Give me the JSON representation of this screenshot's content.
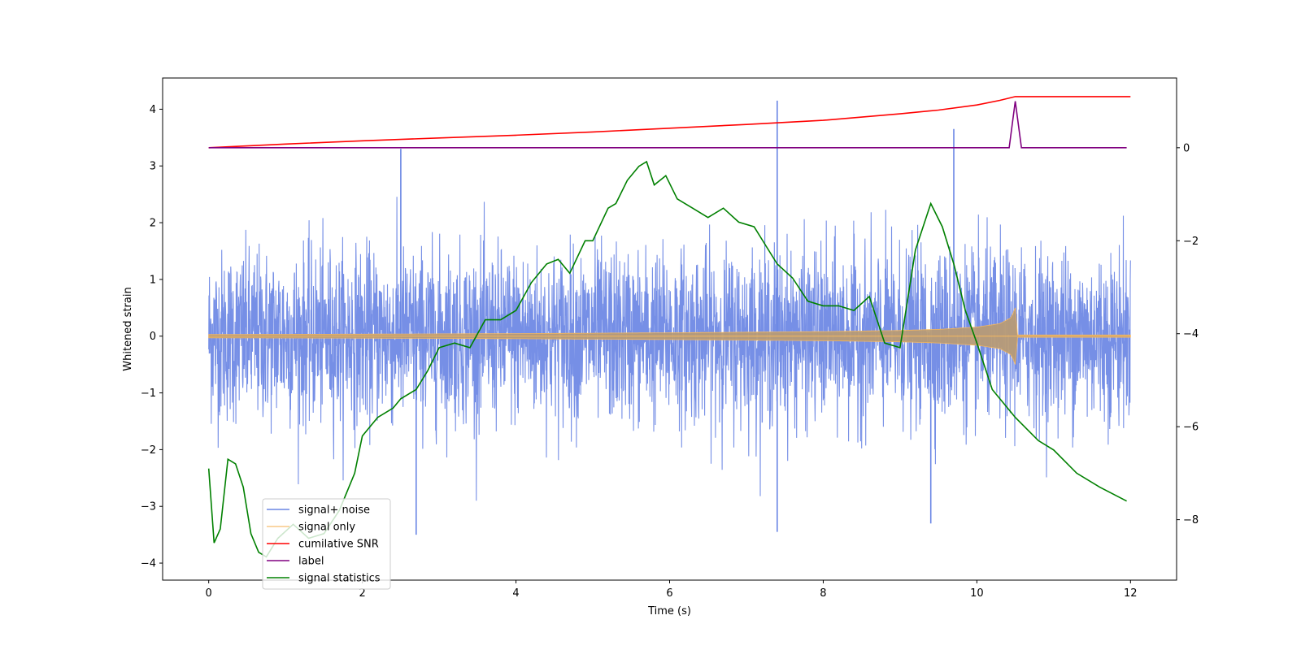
{
  "chart_data": {
    "type": "line",
    "xlabel": "Time (s)",
    "ylabel": "Whitened strain",
    "xlim": [
      -0.6,
      12.6
    ],
    "ylim": [
      -4.3,
      4.55
    ],
    "y2lim": [
      -9.3,
      1.5
    ],
    "x_ticks": [
      0,
      2,
      4,
      6,
      8,
      10,
      12
    ],
    "x_tick_labels": [
      "0",
      "2",
      "4",
      "6",
      "8",
      "10",
      "12"
    ],
    "y_ticks": [
      -4,
      -3,
      -2,
      -1,
      0,
      1,
      2,
      3,
      4
    ],
    "y_tick_labels": [
      "−4",
      "−3",
      "−2",
      "−1",
      "0",
      "1",
      "2",
      "3",
      "4"
    ],
    "y2_ticks": [
      -8,
      -6,
      -4,
      -2,
      0
    ],
    "y2_tick_labels": [
      "−8",
      "−6",
      "−4",
      "−2",
      "0"
    ],
    "legend_position": "lower-left",
    "series": [
      {
        "name": "signal+ noise",
        "axis": "left",
        "color": "#6a86e4",
        "style": "dense-noise",
        "x_start": 0,
        "x_end": 12.0,
        "typical_amplitude": 0.75,
        "peak_upper": [
          [
            2.5,
            3.3
          ],
          [
            7.4,
            4.15
          ],
          [
            9.7,
            3.65
          ]
        ],
        "peak_lower": [
          [
            2.7,
            -3.5
          ],
          [
            7.4,
            -3.45
          ],
          [
            9.4,
            -3.3
          ]
        ]
      },
      {
        "name": "signal only",
        "axis": "left",
        "color": "#f5b75e",
        "style": "chirp",
        "x": [
          0,
          2,
          4,
          6,
          8,
          9,
          9.5,
          10,
          10.3,
          10.45,
          10.5,
          10.52,
          12.0
        ],
        "amplitude": [
          0.03,
          0.035,
          0.045,
          0.06,
          0.08,
          0.1,
          0.12,
          0.16,
          0.22,
          0.33,
          0.5,
          0.02,
          0.02
        ]
      },
      {
        "name": "cumilative SNR",
        "axis": "right",
        "color": "#ff0000",
        "x": [
          0,
          1,
          2,
          3,
          4,
          5,
          6,
          7,
          8,
          9,
          9.5,
          10,
          10.3,
          10.5,
          12.0
        ],
        "values": [
          0.0,
          0.08,
          0.15,
          0.21,
          0.27,
          0.34,
          0.42,
          0.5,
          0.59,
          0.73,
          0.81,
          0.92,
          1.02,
          1.1,
          1.1
        ]
      },
      {
        "name": "label",
        "axis": "right",
        "color": "#800080",
        "x": [
          0,
          10.42,
          10.5,
          10.58,
          11.95
        ],
        "values": [
          0,
          0,
          1.0,
          0,
          0
        ]
      },
      {
        "name": "signal statistics",
        "axis": "right",
        "color": "#008000",
        "x": [
          0,
          0.07,
          0.15,
          0.25,
          0.35,
          0.45,
          0.55,
          0.65,
          0.75,
          0.9,
          1.1,
          1.3,
          1.5,
          1.7,
          1.9,
          2.0,
          2.2,
          2.4,
          2.5,
          2.7,
          2.85,
          3.0,
          3.2,
          3.4,
          3.6,
          3.8,
          4.0,
          4.2,
          4.4,
          4.55,
          4.7,
          4.9,
          5.0,
          5.2,
          5.3,
          5.45,
          5.6,
          5.7,
          5.8,
          5.95,
          6.1,
          6.3,
          6.5,
          6.7,
          6.9,
          7.1,
          7.25,
          7.4,
          7.6,
          7.8,
          8.0,
          8.2,
          8.4,
          8.6,
          8.8,
          9.0,
          9.2,
          9.4,
          9.55,
          9.7,
          9.85,
          10.0,
          10.2,
          10.5,
          10.8,
          11.0,
          11.3,
          11.6,
          11.95
        ],
        "values": [
          -6.9,
          -8.5,
          -8.2,
          -6.7,
          -6.8,
          -7.3,
          -8.3,
          -8.7,
          -8.8,
          -8.4,
          -8.1,
          -8.4,
          -8.3,
          -7.8,
          -7.0,
          -6.2,
          -5.8,
          -5.6,
          -5.4,
          -5.2,
          -4.8,
          -4.3,
          -4.2,
          -4.3,
          -3.7,
          -3.7,
          -3.5,
          -2.9,
          -2.5,
          -2.4,
          -2.7,
          -2.0,
          -2.0,
          -1.3,
          -1.2,
          -0.7,
          -0.4,
          -0.3,
          -0.8,
          -0.6,
          -1.1,
          -1.3,
          -1.5,
          -1.3,
          -1.6,
          -1.7,
          -2.1,
          -2.5,
          -2.8,
          -3.3,
          -3.4,
          -3.4,
          -3.5,
          -3.2,
          -4.2,
          -4.3,
          -2.2,
          -1.2,
          -1.7,
          -2.5,
          -3.5,
          -4.2,
          -5.2,
          -5.8,
          -6.3,
          -6.5,
          -7.0,
          -7.3,
          -7.6
        ]
      }
    ]
  }
}
